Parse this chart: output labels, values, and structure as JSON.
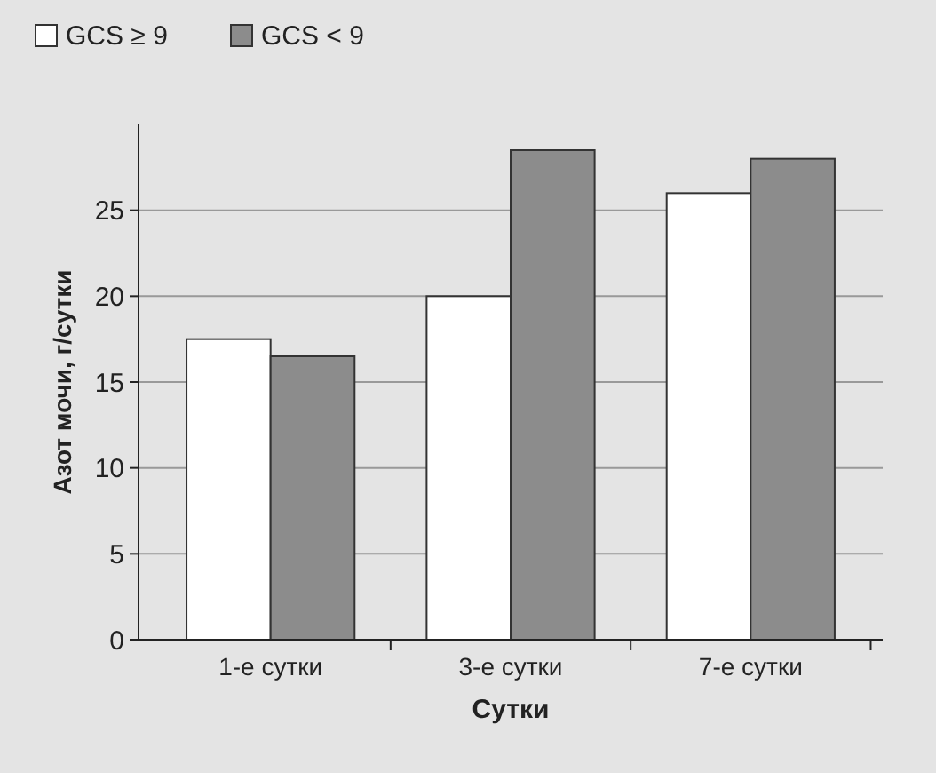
{
  "chart_data": {
    "type": "bar",
    "ylabel": "Азот мочи,  г/сутки",
    "xlabel": "Сутки",
    "categories": [
      "1-е сутки",
      "3-е сутки",
      "7-е сутки"
    ],
    "series": [
      {
        "name": "GCS ≥ 9",
        "color": "#ffffff",
        "values": [
          17.5,
          20,
          26
        ]
      },
      {
        "name": "GCS < 9",
        "color": "#8c8c8c",
        "values": [
          16.5,
          28.5,
          28
        ]
      }
    ],
    "ylim": [
      0,
      30
    ],
    "yticks": [
      0,
      5,
      10,
      15,
      20,
      25
    ],
    "grid": "y",
    "legend": "top left"
  }
}
